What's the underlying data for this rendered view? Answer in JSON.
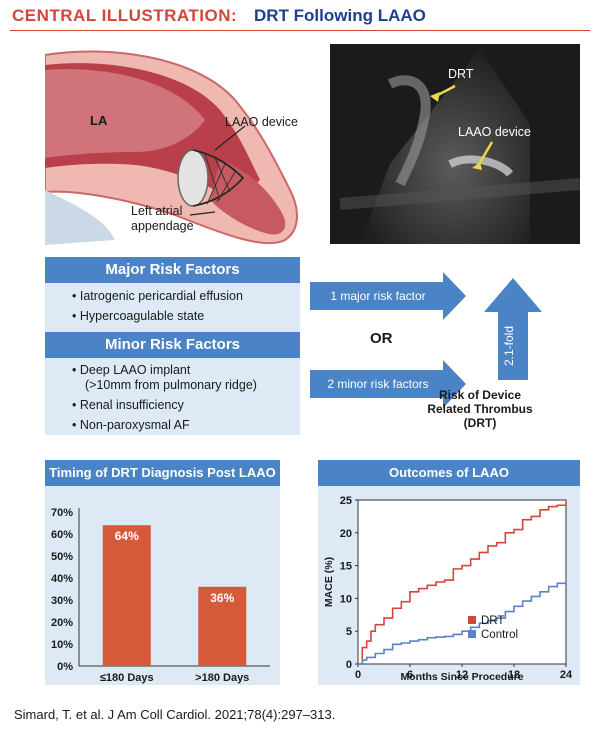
{
  "header": {
    "label": "CENTRAL ILLUSTRATION:",
    "title": "DRT Following LAAO"
  },
  "anatomy": {
    "la": "LA",
    "device": "LAAO device",
    "appendage_line1": "Left atrial",
    "appendage_line2": "appendage"
  },
  "echo": {
    "drt": "DRT",
    "device": "LAAO device"
  },
  "major": {
    "title": "Major Risk Factors",
    "items": [
      "Iatrogenic pericardial effusion",
      "Hypercoagulable state"
    ]
  },
  "minor": {
    "title": "Minor Risk Factors",
    "items": [
      "Deep LAAO implant",
      "(>10mm from pulmonary ridge)",
      "Renal insufficiency",
      "Non-paroxysmal AF"
    ]
  },
  "flow": {
    "arrow1": "1 major risk factor",
    "or": "OR",
    "arrow2": "2 minor risk factors",
    "fold": "2.1-fold",
    "result1": "Risk of Device",
    "result2": "Related Thrombus",
    "result3": "(DRT)"
  },
  "colors": {
    "red": "#d5463a",
    "blue": "#4a84c6",
    "navy": "#1f3f8f",
    "panel": "#dde9f5",
    "bar": "#d65a3a",
    "drt_line": "#d5463a",
    "control_line": "#5b82c8"
  },
  "chart_data": [
    {
      "type": "bar",
      "title": "Timing of DRT Diagnosis Post LAAO",
      "categories": [
        "≤180 Days",
        ">180 Days"
      ],
      "values": [
        64,
        36
      ],
      "value_labels": [
        "64%",
        "36%"
      ],
      "y_ticks": [
        "0%",
        "10%",
        "20%",
        "30%",
        "40%",
        "50%",
        "60%",
        "70%"
      ],
      "ylim": [
        0,
        70
      ]
    },
    {
      "type": "line",
      "title": "Outcomes of LAAO",
      "xlabel": "Months Since Procedure",
      "ylabel": "MACE (%)",
      "xlim": [
        0,
        24
      ],
      "ylim": [
        0,
        25
      ],
      "x_ticks": [
        "0",
        "6",
        "12",
        "18",
        "24"
      ],
      "y_ticks": [
        "0",
        "5",
        "10",
        "15",
        "20",
        "25"
      ],
      "legend": "bottom-right",
      "series": [
        {
          "name": "DRT",
          "x": [
            0,
            0.5,
            1,
            1.5,
            2,
            3,
            4,
            5,
            6,
            7,
            8,
            9,
            10,
            11,
            12,
            13,
            14,
            15,
            16,
            17,
            18,
            19,
            20,
            21,
            22,
            23,
            24
          ],
          "y": [
            0,
            2.5,
            3.5,
            5,
            6,
            7,
            8.5,
            9.5,
            11,
            11.5,
            12,
            12.5,
            12.8,
            14.5,
            15,
            16,
            17,
            18,
            18.5,
            20,
            20.5,
            22,
            22.5,
            23.5,
            24,
            24.2,
            25
          ]
        },
        {
          "name": "Control",
          "x": [
            0,
            0.5,
            1,
            2,
            3,
            4,
            5,
            6,
            7,
            8,
            9,
            10,
            11,
            12,
            13,
            14,
            15,
            16,
            17,
            18,
            19,
            20,
            21,
            22,
            23,
            24
          ],
          "y": [
            0,
            0.6,
            1,
            1.6,
            2.2,
            3,
            3.2,
            3.5,
            3.7,
            4,
            4.1,
            4.2,
            4.5,
            5,
            5.6,
            6.2,
            6.6,
            7,
            8,
            8.8,
            9.6,
            10.3,
            11,
            11.8,
            12.3,
            12.8
          ]
        }
      ]
    }
  ],
  "citation": "Simard, T. et al. J Am Coll Cardiol. 2021;78(4):297–313."
}
